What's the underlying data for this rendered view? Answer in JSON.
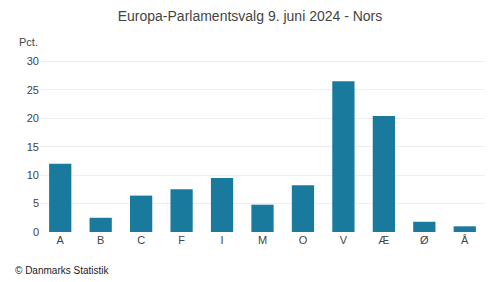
{
  "chart_data": {
    "type": "bar",
    "title": "Europa-Parlamentsvalg 9. juni 2024 - Nors",
    "categories": [
      "A",
      "B",
      "C",
      "F",
      "I",
      "M",
      "O",
      "V",
      "Æ",
      "Ø",
      "Å"
    ],
    "values": [
      12.0,
      2.5,
      6.4,
      7.5,
      9.5,
      4.8,
      8.2,
      26.5,
      20.4,
      1.8,
      1.0
    ],
    "color": "#1a7a9e",
    "ylabel": "Pct.",
    "annotations": [
      "© Danmarks Statistik"
    ],
    "ylim": [
      0,
      32
    ],
    "yticks": [
      0,
      5,
      10,
      15,
      20,
      25,
      30
    ],
    "grid": true
  }
}
